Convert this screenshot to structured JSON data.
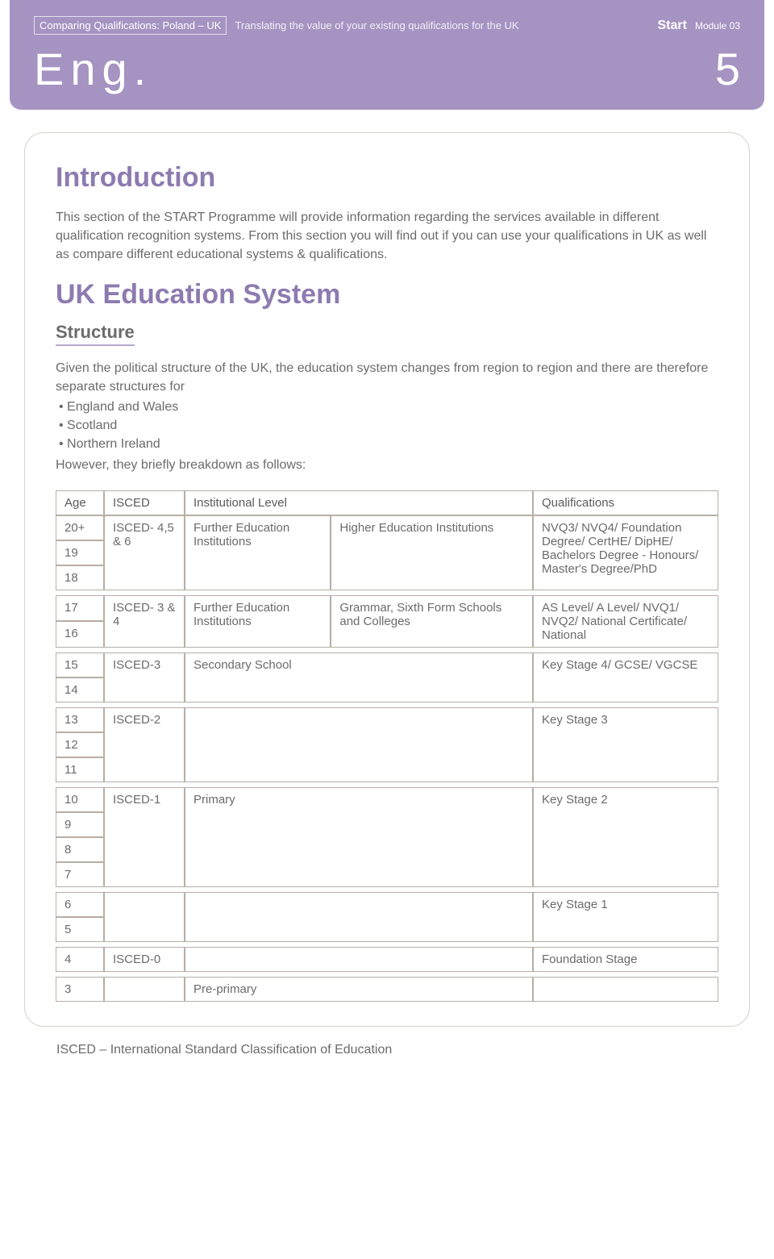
{
  "banner": {
    "boxed_title": "Comparing Qualifications: Poland – UK",
    "subtitle": "Translating the value of your existing qualifications for the UK",
    "start_label": "Start",
    "module_label": "Module 03",
    "lang": "Eng.",
    "page_number": "5"
  },
  "intro": {
    "heading": "Introduction",
    "text": "This section of the START Programme will provide information regarding the services available in different qualification recognition systems. From this section you will find out if you can use your qualifications in UK as well as compare different educational systems & qualifications."
  },
  "system": {
    "heading": "UK Education System",
    "sub_heading": "Structure",
    "intro_line": "Given the political structure of the UK, the education system changes from region to region and there are therefore separate structures for",
    "bullets": [
      "England and Wales",
      "Scotland",
      "Northern Ireland"
    ],
    "outro_line": "However, they briefly breakdown as follows:"
  },
  "table": {
    "headers": {
      "age": "Age",
      "isced": "ISCED",
      "inst": "Institutional Level",
      "qual": "Qualifications"
    },
    "group1": {
      "ages": [
        "20+",
        "19",
        "18"
      ],
      "isced": "ISCED- 4,5 & 6",
      "inst_a": "Further Education Institutions",
      "inst_b": "Higher Education Institutions",
      "qual": "NVQ3/ NVQ4/ Foundation Degree/ CertHE/ DipHE/ Bachelors Degree - Honours/ Master's Degree/PhD"
    },
    "group2": {
      "ages": [
        "17",
        "16"
      ],
      "isced": "ISCED- 3 & 4",
      "inst_a": "Further Education Institutions",
      "inst_b": "Grammar, Sixth Form Schools and Colleges",
      "qual": "AS Level/ A Level/ NVQ1/ NVQ2/ National Certificate/ National"
    },
    "group3": {
      "ages": [
        "15",
        "14"
      ],
      "isced": "ISCED-3",
      "inst": "Secondary School",
      "qual": "Key Stage 4/ GCSE/ VGCSE"
    },
    "group4": {
      "ages": [
        "13",
        "12",
        "11"
      ],
      "isced": "ISCED-2",
      "inst": "",
      "qual": "Key Stage 3"
    },
    "group5": {
      "ages": [
        "10",
        "9",
        "8",
        "7"
      ],
      "isced": "ISCED-1",
      "inst": "Primary",
      "qual": "Key Stage 2"
    },
    "group6": {
      "ages": [
        "6",
        "5"
      ],
      "isced": "",
      "inst": "",
      "qual": "Key Stage 1"
    },
    "group7": {
      "ages": [
        "4"
      ],
      "isced": "ISCED-0",
      "inst": "",
      "qual": "Foundation Stage"
    },
    "group8": {
      "ages": [
        "3"
      ],
      "isced": "",
      "inst": "Pre-primary",
      "qual": ""
    }
  },
  "footnote": "ISCED – International Standard Classification of Education"
}
